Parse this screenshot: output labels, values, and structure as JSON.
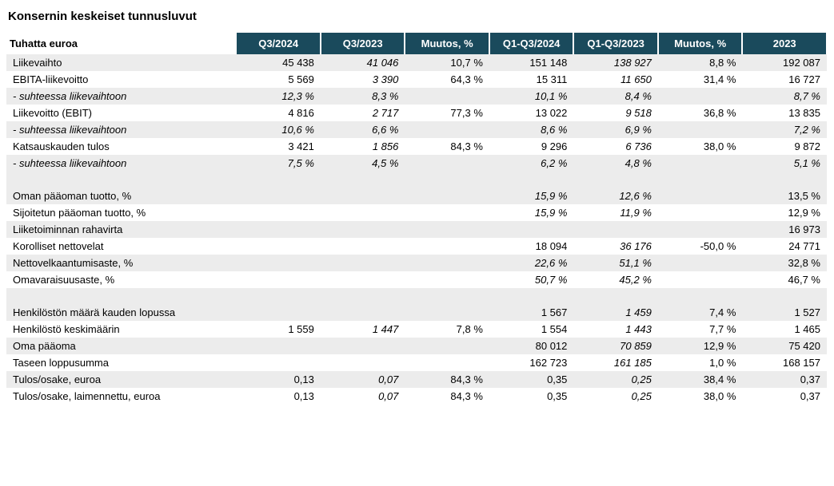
{
  "title": "Konsernin keskeiset tunnusluvut",
  "header": {
    "label": "Tuhatta euroa",
    "cols": [
      "Q3/2024",
      "Q3/2023",
      "Muutos, %",
      "Q1-Q3/2024",
      "Q1-Q3/2023",
      "Muutos, %",
      "2023"
    ]
  },
  "colors": {
    "header_bg": "#1a4a5c",
    "header_fg": "#ffffff",
    "stripe_bg": "#ececec",
    "page_bg": "#ffffff",
    "text": "#000000"
  },
  "col_widths_pct": [
    28,
    10.28,
    10.28,
    10.28,
    10.28,
    10.28,
    10.28,
    10.28
  ],
  "italic_cols": [
    3,
    6
  ],
  "rows": [
    {
      "stripe": true,
      "italic_row": false,
      "cells": [
        "Liikevaihto",
        "45 438",
        "41 046",
        "10,7 %",
        "151 148",
        "138 927",
        "8,8 %",
        "192 087"
      ]
    },
    {
      "stripe": false,
      "italic_row": false,
      "cells": [
        "EBITA-liikevoitto",
        "5 569",
        "3 390",
        "64,3 %",
        "15 311",
        "11 650",
        "31,4 %",
        "16 727"
      ]
    },
    {
      "stripe": true,
      "italic_row": true,
      "cells": [
        " - suhteessa liikevaihtoon",
        "12,3 %",
        "8,3 %",
        "",
        "10,1 %",
        "8,4 %",
        "",
        "8,7 %"
      ]
    },
    {
      "stripe": false,
      "italic_row": false,
      "cells": [
        "Liikevoitto (EBIT)",
        "4 816",
        "2 717",
        "77,3 %",
        "13 022",
        "9 518",
        "36,8 %",
        "13 835"
      ]
    },
    {
      "stripe": true,
      "italic_row": true,
      "cells": [
        " - suhteessa liikevaihtoon",
        "10,6 %",
        "6,6 %",
        "",
        "8,6 %",
        "6,9 %",
        "",
        "7,2 %"
      ]
    },
    {
      "stripe": false,
      "italic_row": false,
      "cells": [
        "Katsauskauden tulos",
        "3 421",
        "1 856",
        "84,3 %",
        "9 296",
        "6 736",
        "38,0 %",
        "9 872"
      ]
    },
    {
      "stripe": true,
      "italic_row": true,
      "cells": [
        " - suhteessa liikevaihtoon",
        "7,5 %",
        "4,5 %",
        "",
        "6,2 %",
        "4,8 %",
        "",
        "5,1 %"
      ]
    },
    {
      "blank": true
    },
    {
      "stripe": true,
      "italic_row": false,
      "cells": [
        "Oman pääoman tuotto, %",
        "",
        "",
        "",
        "15,9 %",
        "12,6 %",
        "",
        "13,5 %"
      ],
      "italic_cells": [
        4,
        5,
        7
      ]
    },
    {
      "stripe": false,
      "italic_row": false,
      "cells": [
        "Sijoitetun pääoman tuotto, %",
        "",
        "",
        "",
        "15,9 %",
        "11,9 %",
        "",
        "12,9 %"
      ],
      "italic_cells": [
        4,
        5,
        7
      ]
    },
    {
      "stripe": true,
      "italic_row": false,
      "cells": [
        "Liiketoiminnan rahavirta",
        "",
        "",
        "",
        "",
        "",
        "",
        "16 973"
      ]
    },
    {
      "stripe": false,
      "italic_row": false,
      "cells": [
        "Korolliset nettovelat",
        "",
        "",
        "",
        "18 094",
        "36 176",
        "-50,0 %",
        "24 771"
      ]
    },
    {
      "stripe": true,
      "italic_row": false,
      "cells": [
        "Nettovelkaantumisaste, %",
        "",
        "",
        "",
        "22,6 %",
        "51,1 %",
        "",
        "32,8 %"
      ],
      "italic_cells": [
        4,
        5,
        7
      ]
    },
    {
      "stripe": false,
      "italic_row": false,
      "cells": [
        "Omavaraisuusaste, %",
        "",
        "",
        "",
        "50,7 %",
        "45,2 %",
        "",
        "46,7 %"
      ],
      "italic_cells": [
        4,
        5,
        7
      ]
    },
    {
      "blank": true
    },
    {
      "stripe": true,
      "italic_row": false,
      "cells": [
        "Henkilöstön määrä kauden lopussa",
        "",
        "",
        "",
        "1 567",
        "1 459",
        "7,4 %",
        "1 527"
      ]
    },
    {
      "stripe": false,
      "italic_row": false,
      "cells": [
        "Henkilöstö keskimäärin",
        "1 559",
        "1 447",
        "7,8 %",
        "1 554",
        "1 443",
        "7,7 %",
        "1 465"
      ]
    },
    {
      "stripe": true,
      "italic_row": false,
      "cells": [
        "Oma pääoma",
        "",
        "",
        "",
        "80 012",
        "70 859",
        "12,9 %",
        "75 420"
      ]
    },
    {
      "stripe": false,
      "italic_row": false,
      "cells": [
        "Taseen loppusumma",
        "",
        "",
        "",
        "162 723",
        "161 185",
        "1,0 %",
        "168 157"
      ]
    },
    {
      "stripe": true,
      "italic_row": false,
      "cells": [
        "Tulos/osake, euroa",
        "0,13",
        "0,07",
        "84,3 %",
        "0,35",
        "0,25",
        "38,4 %",
        "0,37"
      ]
    },
    {
      "stripe": false,
      "italic_row": false,
      "cells": [
        "Tulos/osake, laimennettu, euroa",
        "0,13",
        "0,07",
        "84,3 %",
        "0,35",
        "0,25",
        "38,0 %",
        "0,37"
      ]
    }
  ]
}
